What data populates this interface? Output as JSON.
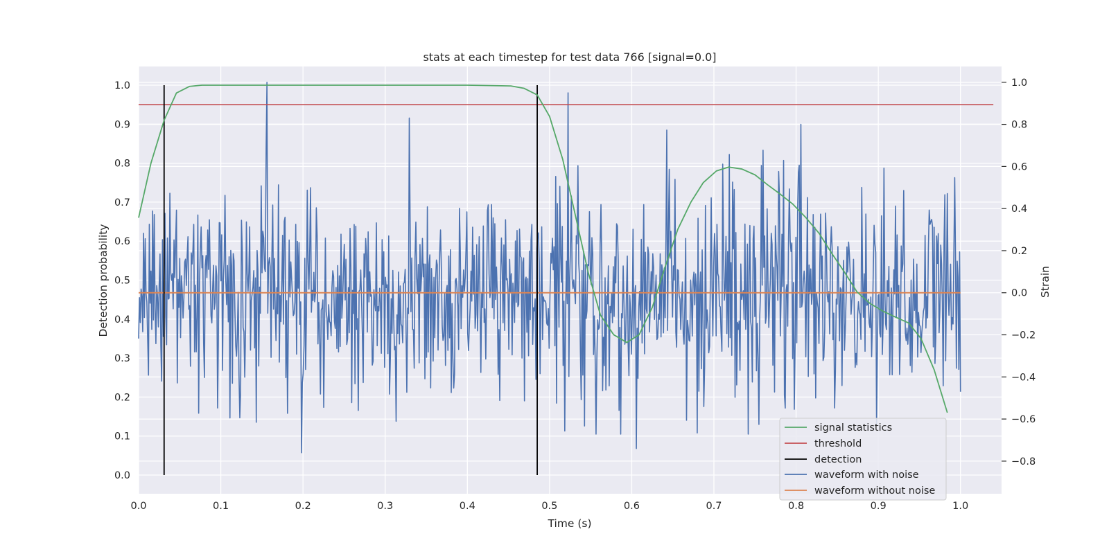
{
  "chart_data": {
    "type": "line",
    "title": "stats at each timestep for test data 766 [signal=0.0]",
    "xlabel": "Time (s)",
    "ylabel": "Detection probability",
    "ylabel_right": "Strain",
    "xlim": [
      0.0,
      1.05
    ],
    "ylim": [
      -0.048,
      1.048
    ],
    "ylim_right": [
      -0.955,
      1.075
    ],
    "grid": true,
    "x_ticks": [
      0.0,
      0.1,
      0.2,
      0.3,
      0.4,
      0.5,
      0.6,
      0.7,
      0.8,
      0.9,
      1.0
    ],
    "x_tick_labels": [
      "0.0",
      "0.1",
      "0.2",
      "0.3",
      "0.4",
      "0.5",
      "0.6",
      "0.7",
      "0.8",
      "0.9",
      "1.0"
    ],
    "y_ticks": [
      0.0,
      0.1,
      0.2,
      0.3,
      0.4,
      0.5,
      0.6,
      0.7,
      0.8,
      0.9,
      1.0
    ],
    "y_tick_labels": [
      "0.0",
      "0.1",
      "0.2",
      "0.3",
      "0.4",
      "0.5",
      "0.6",
      "0.7",
      "0.8",
      "0.9",
      "1.0"
    ],
    "y_right_ticks": [
      -0.8,
      -0.6,
      -0.4,
      -0.2,
      0.0,
      0.2,
      0.4,
      0.6,
      0.8,
      1.0
    ],
    "y_right_tick_labels": [
      "−0.8",
      "−0.6",
      "−0.4",
      "−0.2",
      "0.0",
      "0.2",
      "0.4",
      "0.6",
      "0.8",
      "1.0"
    ],
    "legend_position": "lower-right",
    "series": [
      {
        "name": "signal statistics",
        "axis": "left",
        "color": "#55a868",
        "x": [
          0.0,
          0.015,
          0.031,
          0.046,
          0.062,
          0.077,
          0.093,
          0.1,
          0.2,
          0.3,
          0.4,
          0.453,
          0.469,
          0.485,
          0.5,
          0.516,
          0.531,
          0.547,
          0.562,
          0.578,
          0.594,
          0.609,
          0.625,
          0.64,
          0.656,
          0.672,
          0.687,
          0.703,
          0.718,
          0.734,
          0.75,
          0.765,
          0.781,
          0.796,
          0.812,
          0.828,
          0.843,
          0.859,
          0.874,
          0.89,
          0.906,
          0.921,
          0.937,
          0.952,
          0.968,
          0.984
        ],
        "values": [
          0.66,
          0.8,
          0.91,
          0.98,
          0.997,
          1.0,
          1.0,
          1.0,
          1.0,
          1.0,
          1.0,
          0.998,
          0.992,
          0.975,
          0.92,
          0.81,
          0.67,
          0.52,
          0.41,
          0.36,
          0.34,
          0.36,
          0.43,
          0.53,
          0.63,
          0.7,
          0.75,
          0.78,
          0.79,
          0.785,
          0.77,
          0.745,
          0.72,
          0.695,
          0.66,
          0.62,
          0.57,
          0.52,
          0.47,
          0.44,
          0.42,
          0.405,
          0.39,
          0.35,
          0.27,
          0.16
        ]
      },
      {
        "name": "threshold",
        "axis": "left",
        "color": "#c44e52",
        "x": [
          0.0,
          1.04
        ],
        "values": [
          0.95,
          0.95
        ]
      },
      {
        "name": "detection",
        "axis": "left",
        "color": "#000000",
        "x_positions": [
          0.031,
          0.485
        ],
        "y_range": [
          0.0,
          1.0
        ]
      },
      {
        "name": "waveform with noise",
        "axis": "right",
        "color": "#4c72b0",
        "x_range": [
          0.0,
          1.0
        ],
        "points": 1000,
        "std": 0.25,
        "range": [
          -0.79,
          1.0
        ],
        "labeled_spikes": [
          {
            "x": 0.156,
            "value": 1.0
          },
          {
            "x": 0.329,
            "value": 0.83
          },
          {
            "x": 0.523,
            "value": 0.95
          },
          {
            "x": 0.606,
            "value": -0.74
          },
          {
            "x": 0.198,
            "value": -0.76
          }
        ]
      },
      {
        "name": "waveform without noise",
        "axis": "right",
        "color": "#dd8452",
        "x": [
          0.0,
          1.0
        ],
        "values": [
          0.0,
          0.0
        ]
      }
    ]
  }
}
